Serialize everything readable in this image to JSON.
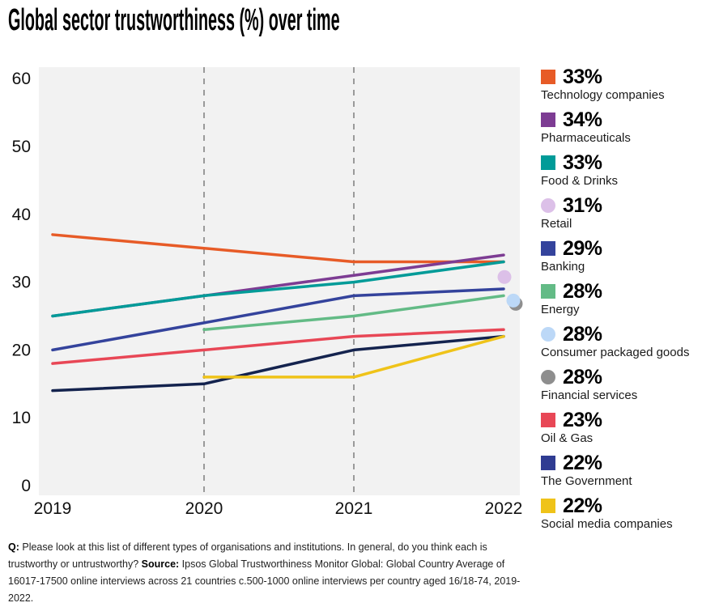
{
  "title": "Global sector trustworthiness (%) over time",
  "footer": {
    "q_label": "Q:",
    "q_text": " Please look at this list of different types of organisations and institutions. In general, do you think each is trustworthy or untrustworthy? ",
    "source_label": "Source:",
    "source_text": " Ipsos Global Trustworthiness Monitor Global: Global Country Average of 16017-17500 online interviews across 21 countries c.500-1000 online interviews per country aged 16/18-74, 2019-2022."
  },
  "chart_data": {
    "type": "line",
    "title": "Global sector trustworthiness (%) over time",
    "xlabel": "",
    "ylabel": "",
    "x": [
      2019,
      2020,
      2021,
      2022
    ],
    "x_tick_labels": [
      "2019",
      "2020",
      "2021",
      "2022"
    ],
    "y_ticks": [
      0,
      10,
      20,
      30,
      40,
      50,
      60
    ],
    "ylim": [
      0,
      62
    ],
    "grid": "dashed vertical gridlines at 2020 and 2021 only",
    "plot_background": "#f2f2f2",
    "gridline_color": "#9a9a9a",
    "legend_position": "right",
    "series": [
      {
        "id": "technology",
        "name": "Technology companies",
        "final_label": "33%",
        "color": "#e75b27",
        "type": "line",
        "values": [
          37,
          35,
          33,
          33
        ]
      },
      {
        "id": "pharmaceuticals",
        "name": "Pharmaceuticals",
        "final_label": "34%",
        "color": "#7d3c93",
        "type": "line",
        "values": [
          25,
          28,
          31,
          34
        ]
      },
      {
        "id": "food-drinks",
        "name": "Food & Drinks",
        "final_label": "33%",
        "color": "#009b98",
        "type": "line",
        "values": [
          25,
          28,
          30,
          33
        ]
      },
      {
        "id": "retail",
        "name": "Retail",
        "final_label": "31%",
        "color": "#dcc0e8",
        "type": "dot",
        "values": [
          null,
          null,
          null,
          31
        ]
      },
      {
        "id": "banking",
        "name": "Banking",
        "final_label": "29%",
        "color": "#34439c",
        "type": "line",
        "values": [
          20,
          24,
          28,
          29
        ]
      },
      {
        "id": "energy",
        "name": "Energy",
        "final_label": "28%",
        "color": "#63bb86",
        "type": "line",
        "values": [
          null,
          23,
          25,
          28
        ]
      },
      {
        "id": "consumer-packaged-goods",
        "name": "Consumer packaged goods",
        "final_label": "28%",
        "color": "#bcd8f7",
        "type": "dot",
        "values": [
          null,
          null,
          null,
          28
        ]
      },
      {
        "id": "financial-services",
        "name": "Financial services",
        "final_label": "28%",
        "color": "#8e8e8e",
        "type": "dot",
        "values": [
          null,
          null,
          null,
          28
        ]
      },
      {
        "id": "oil-gas",
        "name": "Oil & Gas",
        "final_label": "23%",
        "color": "#e84756",
        "type": "line",
        "values": [
          18,
          20,
          22,
          23
        ]
      },
      {
        "id": "government",
        "name": "The Government",
        "final_label": "22%",
        "color": "#14234e",
        "legend_color": "#2f3c92",
        "type": "line",
        "values": [
          14,
          15,
          20,
          22
        ]
      },
      {
        "id": "social-media",
        "name": "Social media companies",
        "final_label": "22%",
        "color": "#efc319",
        "type": "line",
        "values": [
          null,
          16,
          16,
          22
        ]
      }
    ]
  }
}
